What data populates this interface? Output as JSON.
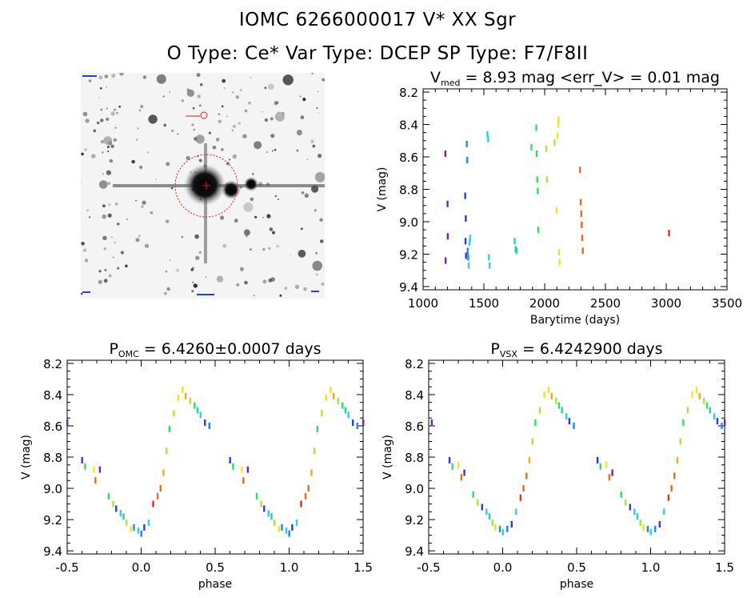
{
  "header": {
    "line1": "IOMC 6266000017   V* XX Sgr",
    "line2": "O Type: Ce*  Var Type: DCEP  SP Type: F7/F8II"
  },
  "colors": {
    "phase_palette": [
      "#7a1fa2",
      "#2a3bd6",
      "#1e88e5",
      "#29d0ef",
      "#18d9a0",
      "#2fe05a",
      "#a6e83a",
      "#f2e416",
      "#f2a91a",
      "#ea6a1a",
      "#d9341c"
    ]
  },
  "chart_data": [
    {
      "id": "lightcurve",
      "type": "scatter",
      "title": "V_med = 8.93 mag <err_V> = 0.01 mag",
      "title_main": "V",
      "title_sub": "med",
      "title_rest": " = 8.93 mag <err_V> = 0.01 mag",
      "xlabel": "Barytime (days)",
      "ylabel": "V (mag)",
      "xlim": [
        1000,
        3500
      ],
      "ylim": [
        9.42,
        8.18
      ],
      "xticks": [
        1000,
        1500,
        2000,
        2500,
        3000,
        3500
      ],
      "yticks": [
        8.2,
        8.4,
        8.6,
        8.8,
        9.0,
        9.2,
        9.4
      ],
      "points": [
        [
          1182,
          8.58,
          0
        ],
        [
          1184,
          9.24,
          0
        ],
        [
          1200,
          8.89,
          0
        ],
        [
          1202,
          9.09,
          0
        ],
        [
          1345,
          8.84,
          1
        ],
        [
          1350,
          8.98,
          1
        ],
        [
          1348,
          9.12,
          1
        ],
        [
          1352,
          9.21,
          1
        ],
        [
          1358,
          8.52,
          2
        ],
        [
          1362,
          8.62,
          2
        ],
        [
          1366,
          9.18,
          2
        ],
        [
          1370,
          9.22,
          2
        ],
        [
          1374,
          9.27,
          3
        ],
        [
          1380,
          9.13,
          3
        ],
        [
          1386,
          9.1,
          3
        ],
        [
          1528,
          8.46,
          3
        ],
        [
          1534,
          8.49,
          3
        ],
        [
          1540,
          9.22,
          3
        ],
        [
          1546,
          9.27,
          3
        ],
        [
          1752,
          9.12,
          4
        ],
        [
          1760,
          9.17,
          4
        ],
        [
          1768,
          9.18,
          4
        ],
        [
          1890,
          8.54,
          5
        ],
        [
          1930,
          8.42,
          5
        ],
        [
          1934,
          8.58,
          5
        ],
        [
          1938,
          8.74,
          5
        ],
        [
          1942,
          8.81,
          5
        ],
        [
          1946,
          9.05,
          5
        ],
        [
          2012,
          8.55,
          6
        ],
        [
          2018,
          8.74,
          6
        ],
        [
          2080,
          8.51,
          6
        ],
        [
          2098,
          8.93,
          7
        ],
        [
          2104,
          8.47,
          7
        ],
        [
          2110,
          8.4,
          7
        ],
        [
          2114,
          8.37,
          7
        ],
        [
          2118,
          9.19,
          7
        ],
        [
          2122,
          9.25,
          7
        ],
        [
          2290,
          8.68,
          9
        ],
        [
          2296,
          8.88,
          9
        ],
        [
          2300,
          8.95,
          9
        ],
        [
          2304,
          9.02,
          9
        ],
        [
          2308,
          9.1,
          9
        ],
        [
          2312,
          9.18,
          9
        ],
        [
          3022,
          9.07,
          10
        ]
      ]
    },
    {
      "id": "phase_omc",
      "type": "scatter",
      "title": "P_OMC = 6.4260±0.0007 days",
      "title_main": "P",
      "title_sub": "OMC",
      "title_rest": " = 6.4260±0.0007 days",
      "xlabel": "phase",
      "ylabel": "V (mag)",
      "xlim": [
        -0.5,
        1.5
      ],
      "ylim": [
        9.42,
        8.18
      ],
      "xticks": [
        -0.5,
        0.0,
        0.5,
        1.0,
        1.5
      ],
      "yticks": [
        8.2,
        8.4,
        8.6,
        8.8,
        9.0,
        9.2,
        9.4
      ],
      "xtick_labels": [
        "-0.5",
        "0.0",
        "0.5",
        "1.0",
        "1.5"
      ],
      "points": [
        [
          -0.4,
          8.82,
          1
        ],
        [
          -0.38,
          8.86,
          5
        ],
        [
          -0.32,
          8.88,
          7
        ],
        [
          -0.31,
          8.95,
          9
        ],
        [
          -0.28,
          8.88,
          0
        ],
        [
          -0.22,
          9.05,
          5
        ],
        [
          -0.19,
          9.1,
          6
        ],
        [
          -0.17,
          9.13,
          1
        ],
        [
          -0.14,
          9.16,
          3
        ],
        [
          -0.12,
          9.18,
          4
        ],
        [
          -0.1,
          9.22,
          6
        ],
        [
          -0.07,
          9.26,
          7
        ],
        [
          -0.05,
          9.25,
          2
        ],
        [
          -0.02,
          9.27,
          3
        ],
        [
          0.0,
          9.29,
          2
        ],
        [
          0.02,
          9.25,
          1
        ],
        [
          0.05,
          9.22,
          3
        ],
        [
          0.08,
          9.1,
          10
        ],
        [
          0.11,
          9.05,
          9
        ],
        [
          0.13,
          9.0,
          9
        ],
        [
          0.15,
          8.9,
          8
        ],
        [
          0.17,
          8.76,
          6
        ],
        [
          0.19,
          8.62,
          5
        ],
        [
          0.22,
          8.52,
          6
        ],
        [
          0.25,
          8.42,
          7
        ],
        [
          0.28,
          8.37,
          7
        ],
        [
          0.3,
          8.41,
          8
        ],
        [
          0.33,
          8.44,
          6
        ],
        [
          0.36,
          8.47,
          5
        ],
        [
          0.38,
          8.5,
          4
        ],
        [
          0.4,
          8.53,
          3
        ],
        [
          0.43,
          8.58,
          1
        ],
        [
          0.46,
          8.6,
          2
        ],
        [
          -0.5,
          8.58,
          0
        ],
        [
          0.6,
          8.82,
          1
        ],
        [
          0.62,
          8.86,
          5
        ],
        [
          0.68,
          8.88,
          7
        ],
        [
          0.69,
          8.95,
          9
        ],
        [
          0.72,
          8.88,
          0
        ],
        [
          0.78,
          9.05,
          5
        ],
        [
          0.81,
          9.1,
          6
        ],
        [
          0.83,
          9.13,
          1
        ],
        [
          0.86,
          9.16,
          3
        ],
        [
          0.88,
          9.18,
          4
        ],
        [
          0.9,
          9.22,
          6
        ],
        [
          0.93,
          9.26,
          7
        ],
        [
          0.95,
          9.25,
          2
        ],
        [
          0.98,
          9.27,
          3
        ],
        [
          1.0,
          9.29,
          2
        ],
        [
          1.02,
          9.25,
          1
        ],
        [
          1.05,
          9.22,
          3
        ],
        [
          1.08,
          9.1,
          10
        ],
        [
          1.11,
          9.05,
          9
        ],
        [
          1.13,
          9.0,
          9
        ],
        [
          1.15,
          8.9,
          8
        ],
        [
          1.17,
          8.76,
          6
        ],
        [
          1.19,
          8.62,
          5
        ],
        [
          1.22,
          8.52,
          6
        ],
        [
          1.25,
          8.42,
          7
        ],
        [
          1.28,
          8.37,
          7
        ],
        [
          1.3,
          8.41,
          8
        ],
        [
          1.33,
          8.44,
          6
        ],
        [
          1.36,
          8.47,
          5
        ],
        [
          1.38,
          8.5,
          4
        ],
        [
          1.4,
          8.53,
          3
        ],
        [
          1.43,
          8.58,
          1
        ],
        [
          1.46,
          8.6,
          2
        ],
        [
          1.5,
          8.58,
          0
        ]
      ]
    },
    {
      "id": "phase_vsx",
      "type": "scatter",
      "title": "P_VSX = 6.4242900 days",
      "title_main": "P",
      "title_sub": "VSX",
      "title_rest": " = 6.4242900 days",
      "xlabel": "phase",
      "ylabel": "V (mag)",
      "xlim": [
        -0.5,
        1.5
      ],
      "ylim": [
        9.42,
        8.18
      ],
      "xticks": [
        -0.5,
        0.0,
        0.5,
        1.0,
        1.5
      ],
      "yticks": [
        8.2,
        8.4,
        8.6,
        8.8,
        9.0,
        9.2,
        9.4
      ],
      "xtick_labels": [
        "-0.5",
        "0.0",
        "0.5",
        "1.0",
        "1.5"
      ],
      "points": [
        [
          -0.36,
          8.82,
          1
        ],
        [
          -0.34,
          8.86,
          5
        ],
        [
          -0.3,
          8.85,
          7
        ],
        [
          -0.28,
          8.93,
          9
        ],
        [
          -0.26,
          8.9,
          0
        ],
        [
          -0.2,
          9.04,
          5
        ],
        [
          -0.17,
          9.09,
          6
        ],
        [
          -0.14,
          9.12,
          1
        ],
        [
          -0.11,
          9.15,
          3
        ],
        [
          -0.09,
          9.18,
          4
        ],
        [
          -0.07,
          9.22,
          6
        ],
        [
          -0.05,
          9.25,
          7
        ],
        [
          -0.02,
          9.26,
          2
        ],
        [
          0.0,
          9.28,
          3
        ],
        [
          0.03,
          9.26,
          2
        ],
        [
          0.06,
          9.23,
          1
        ],
        [
          0.09,
          9.15,
          3
        ],
        [
          0.12,
          9.06,
          10
        ],
        [
          0.14,
          9.0,
          9
        ],
        [
          0.16,
          8.92,
          9
        ],
        [
          0.18,
          8.82,
          8
        ],
        [
          0.2,
          8.7,
          6
        ],
        [
          0.22,
          8.58,
          5
        ],
        [
          0.25,
          8.5,
          6
        ],
        [
          0.28,
          8.4,
          7
        ],
        [
          0.31,
          8.37,
          7
        ],
        [
          0.33,
          8.41,
          8
        ],
        [
          0.36,
          8.44,
          6
        ],
        [
          0.38,
          8.47,
          5
        ],
        [
          0.4,
          8.5,
          4
        ],
        [
          0.43,
          8.54,
          3
        ],
        [
          0.45,
          8.57,
          1
        ],
        [
          0.48,
          8.6,
          2
        ],
        [
          -0.48,
          8.58,
          0
        ],
        [
          0.64,
          8.82,
          1
        ],
        [
          0.66,
          8.86,
          5
        ],
        [
          0.7,
          8.85,
          7
        ],
        [
          0.72,
          8.93,
          9
        ],
        [
          0.74,
          8.9,
          0
        ],
        [
          0.8,
          9.04,
          5
        ],
        [
          0.83,
          9.09,
          6
        ],
        [
          0.86,
          9.12,
          1
        ],
        [
          0.89,
          9.15,
          3
        ],
        [
          0.91,
          9.18,
          4
        ],
        [
          0.93,
          9.22,
          6
        ],
        [
          0.95,
          9.25,
          7
        ],
        [
          0.98,
          9.26,
          2
        ],
        [
          1.0,
          9.28,
          3
        ],
        [
          1.03,
          9.26,
          2
        ],
        [
          1.06,
          9.23,
          1
        ],
        [
          1.09,
          9.15,
          3
        ],
        [
          1.12,
          9.06,
          10
        ],
        [
          1.14,
          9.0,
          9
        ],
        [
          1.16,
          8.92,
          9
        ],
        [
          1.18,
          8.82,
          8
        ],
        [
          1.2,
          8.7,
          6
        ],
        [
          1.22,
          8.58,
          5
        ],
        [
          1.25,
          8.5,
          6
        ],
        [
          1.28,
          8.4,
          7
        ],
        [
          1.31,
          8.37,
          7
        ],
        [
          1.33,
          8.41,
          8
        ],
        [
          1.36,
          8.44,
          6
        ],
        [
          1.38,
          8.47,
          5
        ],
        [
          1.4,
          8.5,
          4
        ],
        [
          1.43,
          8.54,
          3
        ],
        [
          1.45,
          8.57,
          1
        ],
        [
          1.48,
          8.6,
          2
        ],
        [
          1.5,
          8.58,
          0
        ]
      ]
    }
  ]
}
